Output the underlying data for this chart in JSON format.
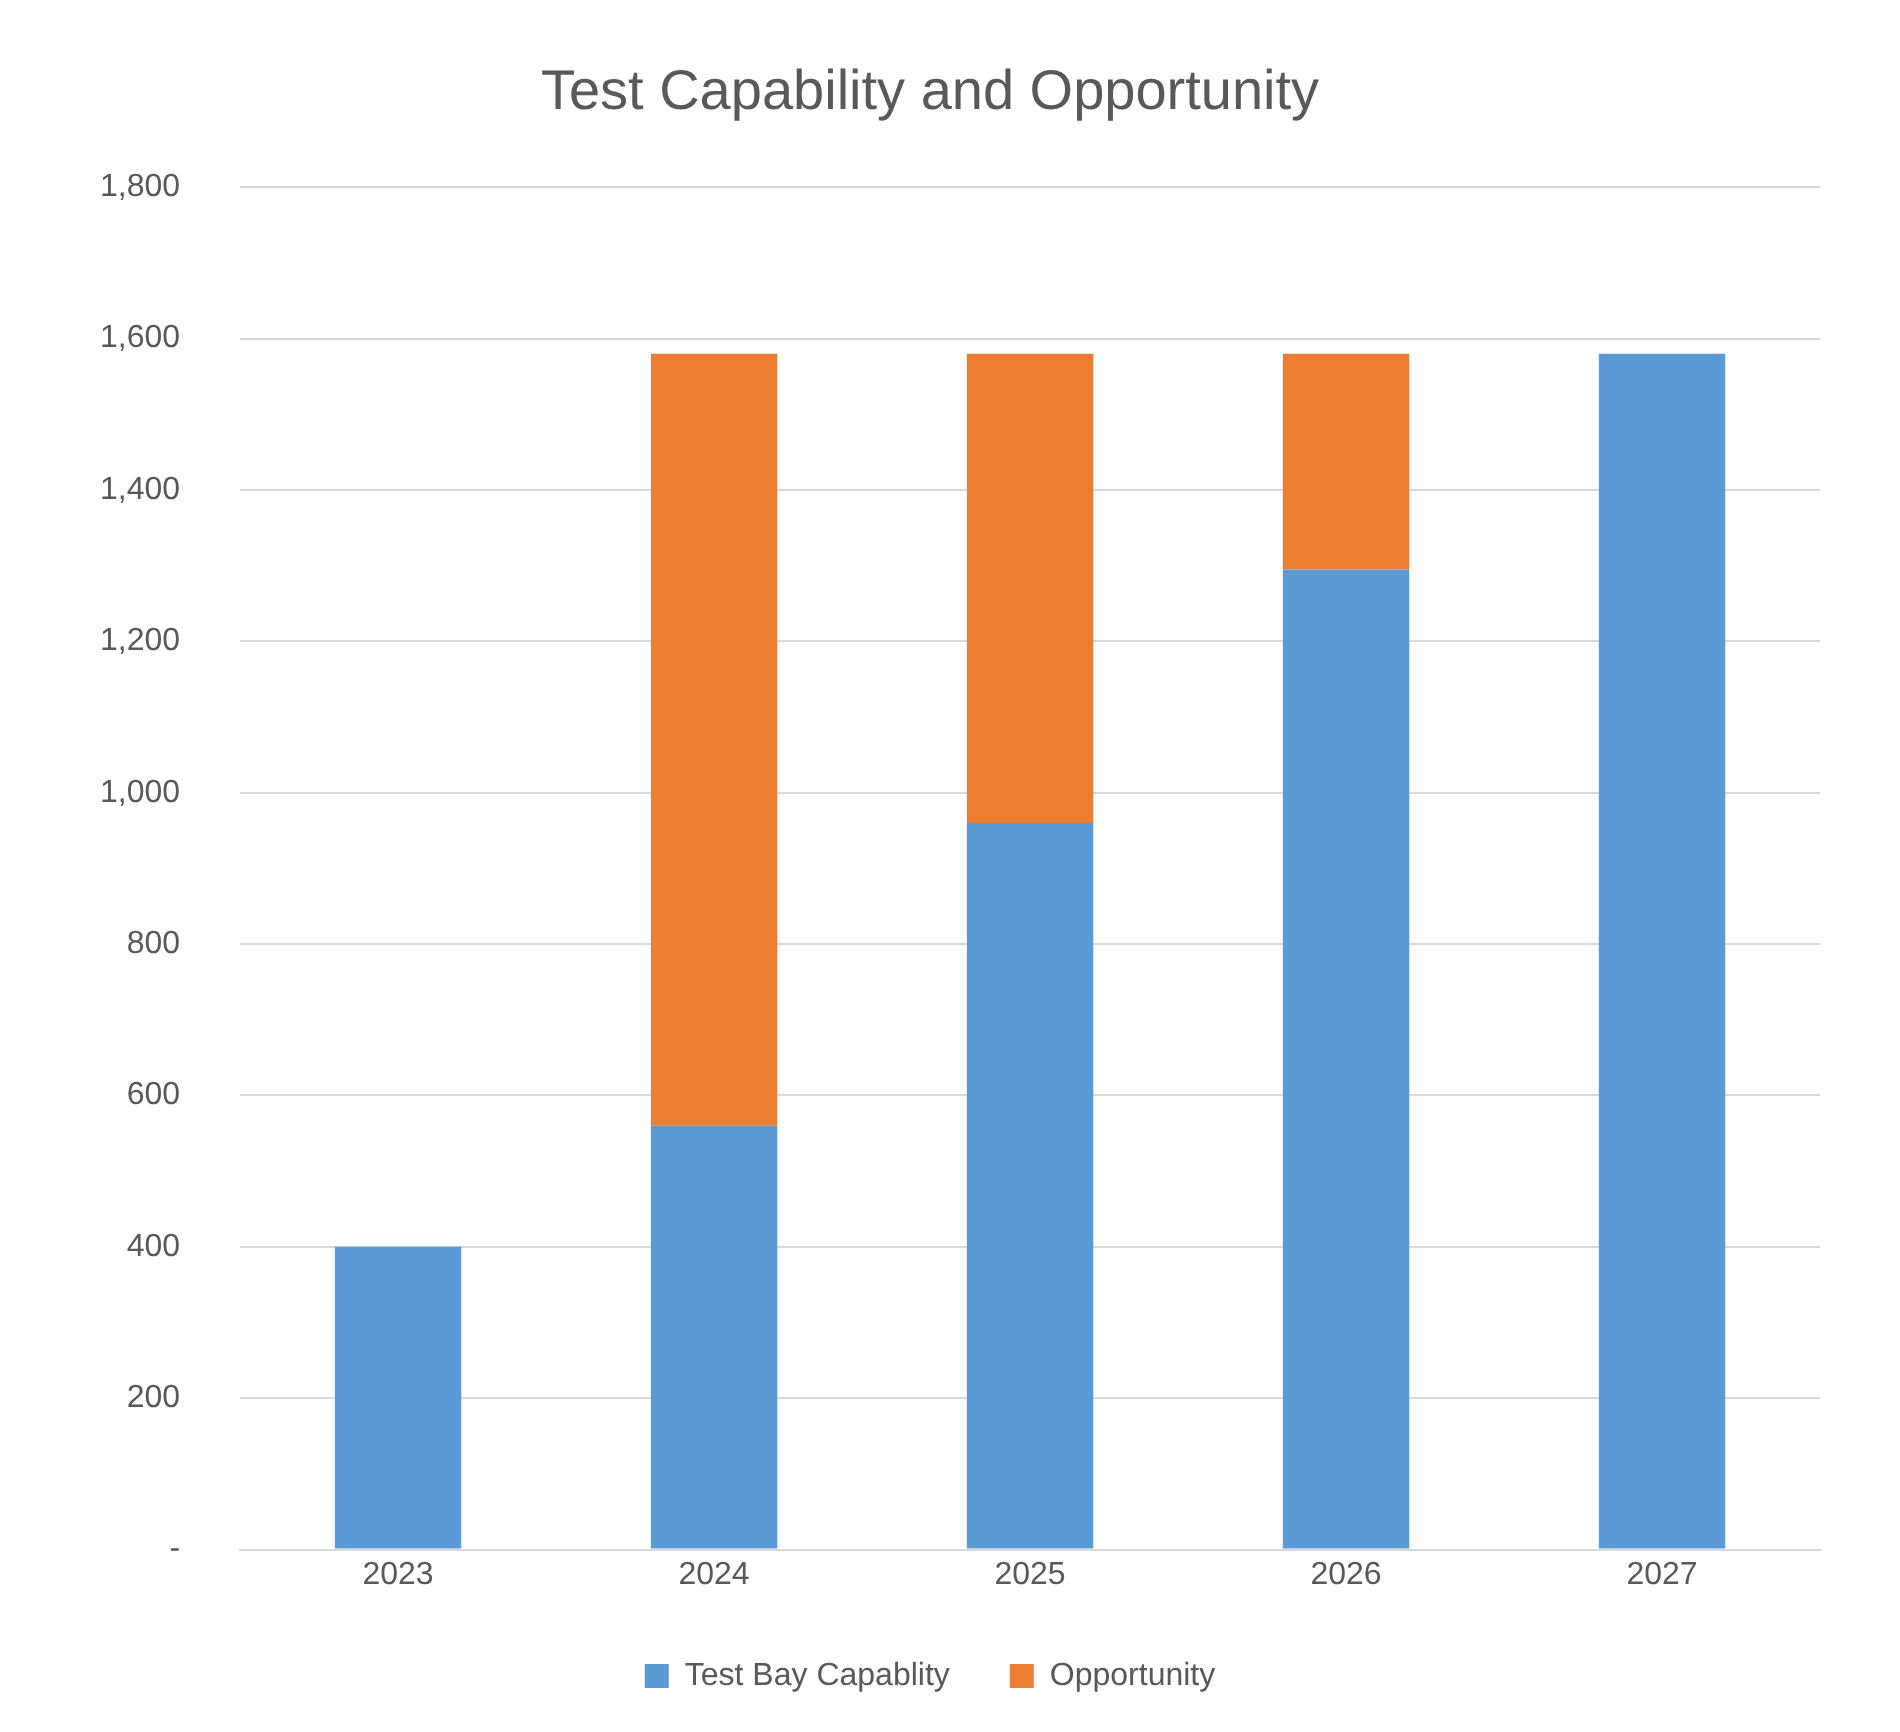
{
  "chart_data": {
    "type": "bar",
    "title": "Test Capability and Opportunity",
    "stacked": true,
    "categories": [
      "2023",
      "2024",
      "2025",
      "2026",
      "2027"
    ],
    "series": [
      {
        "name": "Test Bay Capablity",
        "color": "#5b9bd5",
        "values": [
          400,
          560,
          960,
          1295,
          1580
        ]
      },
      {
        "name": "Opportunity",
        "color": "#ed7d31",
        "values": [
          0,
          1020,
          620,
          285,
          0
        ]
      }
    ],
    "ylim": [
      0,
      1800
    ],
    "yticks": [
      {
        "value": 0,
        "label": "-"
      },
      {
        "value": 200,
        "label": "200"
      },
      {
        "value": 400,
        "label": "400"
      },
      {
        "value": 600,
        "label": "600"
      },
      {
        "value": 800,
        "label": "800"
      },
      {
        "value": 1000,
        "label": "1,000"
      },
      {
        "value": 1200,
        "label": "1,200"
      },
      {
        "value": 1400,
        "label": "1,400"
      },
      {
        "value": 1600,
        "label": "1,600"
      },
      {
        "value": 1800,
        "label": "1,800"
      }
    ],
    "grid": "y",
    "legend": "bottom"
  }
}
